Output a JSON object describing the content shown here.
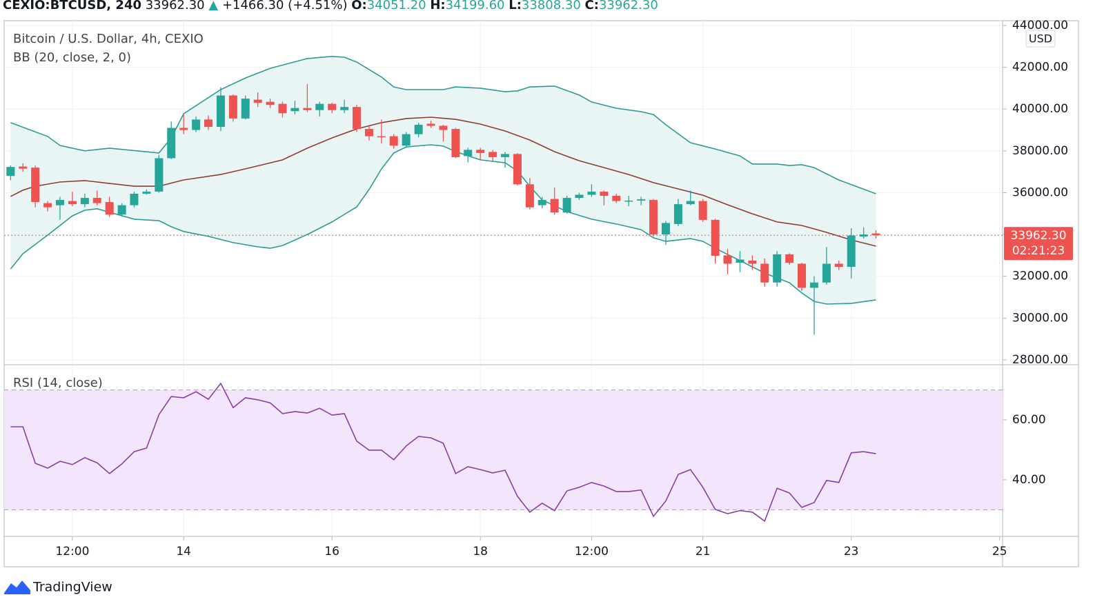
{
  "header": {
    "symbol": "CEXIO:BTCUSD, 240",
    "last": "33962.30",
    "arrow": "▲",
    "change": "+1466.30 (+4.51%)",
    "ohlc": [
      {
        "key": "O:",
        "value": "34051.20"
      },
      {
        "key": "H:",
        "value": "34199.60"
      },
      {
        "key": "L:",
        "value": "33808.30"
      },
      {
        "key": "C:",
        "value": "33962.30"
      }
    ]
  },
  "branding": "TradingView",
  "chart_data": [
    {
      "type": "candlestick",
      "title": "Bitcoin / U.S. Dollar, 4h, CEXIO",
      "currency": "USD",
      "up_color": "#26a69a",
      "down_color": "#ef5350",
      "x": [
        11.667,
        11.833,
        12,
        12.167,
        12.333,
        12.5,
        12.667,
        12.833,
        13,
        13.167,
        13.333,
        13.5,
        13.667,
        13.833,
        14,
        14.167,
        14.333,
        14.5,
        14.667,
        14.833,
        15,
        15.167,
        15.333,
        15.5,
        15.667,
        15.833,
        16,
        16.167,
        16.333,
        16.5,
        16.667,
        16.833,
        17,
        17.167,
        17.333,
        17.5,
        17.667,
        17.833,
        18,
        18.167,
        18.333,
        18.5,
        18.667,
        18.833,
        19,
        19.167,
        19.333,
        19.5,
        19.667,
        19.833,
        20,
        20.167,
        20.333,
        20.5,
        20.667,
        20.833,
        21,
        21.167,
        21.333,
        21.5,
        21.667,
        21.833,
        22,
        22.167,
        22.333,
        22.5,
        22.667,
        22.833,
        23,
        23.167,
        23.333
      ],
      "open": [
        36800,
        37250,
        37200,
        35500,
        35400,
        35600,
        35450,
        35750,
        35550,
        34950,
        35400,
        35950,
        36050,
        37650,
        39100,
        39000,
        39500,
        39150,
        40650,
        39550,
        40450,
        40350,
        40250,
        39900,
        40050,
        39950,
        40250,
        39950,
        40100,
        39050,
        38700,
        38700,
        38250,
        38800,
        39300,
        39200,
        39050,
        37750,
        38050,
        37950,
        37700,
        37850,
        36400,
        35400,
        35700,
        35050,
        35750,
        35900,
        36050,
        35850,
        35580,
        35620,
        35650,
        34000,
        34500,
        35450,
        35600,
        34700,
        33000,
        32650,
        32750,
        32600,
        31700,
        33050,
        32600,
        31450,
        31700,
        32600,
        32450,
        33900,
        34051.2
      ],
      "high": [
        37300,
        37400,
        37300,
        35600,
        35800,
        36050,
        35950,
        36100,
        35800,
        35500,
        36050,
        36150,
        37800,
        39400,
        39800,
        39650,
        39700,
        41050,
        40700,
        40650,
        40800,
        40500,
        40350,
        40400,
        41200,
        40350,
        40300,
        40450,
        40200,
        39200,
        39500,
        38800,
        38900,
        39350,
        39450,
        39250,
        39100,
        38150,
        38150,
        38050,
        37950,
        37900,
        36700,
        35800,
        36250,
        35850,
        36000,
        36400,
        36100,
        35950,
        35850,
        35800,
        35700,
        34650,
        35700,
        36100,
        35700,
        34750,
        33300,
        33200,
        33000,
        32850,
        33200,
        33100,
        32650,
        32000,
        33400,
        32750,
        34300,
        34350,
        34199.6
      ],
      "low": [
        36600,
        37000,
        35300,
        35100,
        34700,
        35350,
        35300,
        35400,
        34850,
        34850,
        35300,
        35900,
        36000,
        37600,
        38800,
        38900,
        39000,
        38950,
        39400,
        39500,
        40100,
        40050,
        39600,
        39750,
        39850,
        39650,
        39800,
        39800,
        38900,
        38500,
        38350,
        38100,
        38150,
        38650,
        39100,
        38450,
        37650,
        37450,
        37550,
        37500,
        37200,
        36350,
        35200,
        35250,
        34950,
        35000,
        35650,
        35800,
        35400,
        35500,
        35350,
        35400,
        33900,
        33500,
        34400,
        35400,
        34600,
        32600,
        32100,
        32200,
        32300,
        31500,
        31500,
        32550,
        31300,
        29200,
        31600,
        32300,
        31900,
        33800,
        33808.3
      ],
      "close": [
        37230,
        37150,
        35550,
        35300,
        35650,
        35450,
        35750,
        35500,
        34950,
        35400,
        35950,
        36050,
        37650,
        39100,
        39000,
        39500,
        39150,
        40650,
        39550,
        40500,
        40300,
        40200,
        39800,
        40050,
        39950,
        40250,
        39950,
        40100,
        39050,
        38700,
        38650,
        38250,
        38800,
        39250,
        39200,
        39000,
        37700,
        38050,
        37900,
        37700,
        37850,
        36400,
        35300,
        35650,
        35050,
        35750,
        35900,
        36050,
        35850,
        35600,
        35620,
        35680,
        34000,
        34550,
        35450,
        35600,
        34700,
        32980,
        32600,
        32800,
        32600,
        31700,
        33050,
        32650,
        31450,
        31700,
        32600,
        32450,
        33950,
        34000,
        33962.3
      ],
      "last_price_label": "33962.30",
      "countdown": "02:21:23",
      "last_color": "#ef5350",
      "overlay": {
        "name": "BB (20, close, 2, 0)",
        "fill": "#e9f5f4",
        "series": [
          {
            "color": "#2f9a94",
            "x": [
              11.667,
              12.167,
              12.333,
              12.667,
              13,
              13.667,
              13.833,
              14,
              14.5,
              14.833,
              15.167,
              15.667,
              16,
              16.167,
              16.333,
              16.667,
              16.833,
              17,
              17.5,
              17.667,
              18,
              18.333,
              18.5,
              18.667,
              19,
              19.333,
              19.5,
              19.833,
              20.167,
              20.333,
              20.5,
              20.833,
              21.167,
              21.5,
              21.667,
              22,
              22.167,
              22.333,
              22.5,
              22.833,
              23.333
            ],
            "values": [
              39350,
              38690,
              38260,
              38000,
              38130,
              37900,
              38620,
              39780,
              40930,
              41490,
              41950,
              42420,
              42520,
              42480,
              42250,
              41530,
              41060,
              40930,
              40930,
              41060,
              41000,
              40830,
              40870,
              41060,
              41100,
              40670,
              40340,
              40040,
              39880,
              39740,
              39250,
              38390,
              38090,
              37760,
              37370,
              37370,
              37300,
              37340,
              37200,
              36610,
              35950
            ]
          },
          {
            "color": "#8d3b30",
            "x": [
              11.667,
              11.833,
              12,
              12.333,
              12.667,
              13,
              13.333,
              13.667,
              14,
              14.5,
              14.833,
              15.333,
              15.667,
              16,
              16.333,
              16.667,
              17,
              17.333,
              17.667,
              18,
              18.333,
              18.667,
              19,
              19.333,
              19.667,
              20,
              20.333,
              20.667,
              21,
              21.333,
              21.667,
              22,
              22.333,
              22.667,
              23,
              23.333
            ],
            "values": [
              35820,
              36120,
              36310,
              36510,
              36580,
              36440,
              36310,
              36310,
              36610,
              36870,
              37140,
              37570,
              38130,
              38620,
              39050,
              39350,
              39550,
              39610,
              39510,
              39280,
              38950,
              38520,
              37960,
              37530,
              37200,
              36870,
              36480,
              36180,
              35880,
              35420,
              34990,
              34600,
              34430,
              34100,
              33740,
              33440
            ]
          },
          {
            "color": "#2f9a94",
            "x": [
              11.667,
              11.833,
              12.167,
              12.333,
              12.5,
              12.667,
              12.833,
              13,
              13.333,
              13.667,
              13.833,
              14,
              14.333,
              14.667,
              15,
              15.167,
              15.333,
              15.667,
              16,
              16.333,
              16.5,
              16.667,
              16.833,
              17,
              17.333,
              17.5,
              17.667,
              18,
              18.333,
              18.5,
              18.667,
              18.833,
              19.167,
              19.5,
              19.833,
              20.167,
              20.333,
              20.5,
              20.833,
              21,
              21.167,
              21.5,
              21.833,
              22.167,
              22.333,
              22.5,
              22.667,
              23,
              23.333
            ],
            "values": [
              32350,
              33080,
              33970,
              34430,
              34890,
              35160,
              35230,
              35060,
              34730,
              34660,
              34370,
              34140,
              33910,
              33610,
              33410,
              33340,
              33470,
              34000,
              34600,
              35320,
              36150,
              37140,
              37900,
              38190,
              38290,
              38230,
              37960,
              37570,
              37430,
              37040,
              36310,
              35650,
              35090,
              34730,
              34500,
              34230,
              33840,
              33670,
              33800,
              33670,
              33340,
              32750,
              32150,
              31690,
              31200,
              30800,
              30670,
              30700,
              30870
            ]
          }
        ]
      },
      "ylim": [
        27800,
        44230
      ],
      "yticks": [
        {
          "value": 28000,
          "label": "28000.00"
        },
        {
          "value": 30000,
          "label": "30000.00"
        },
        {
          "value": 32000,
          "label": "32000.00"
        },
        {
          "value": 34000,
          "label": "34000.00"
        },
        {
          "value": 36000,
          "label": "36000.00"
        },
        {
          "value": 38000,
          "label": "38000.00"
        },
        {
          "value": 40000,
          "label": "40000.00"
        },
        {
          "value": 42000,
          "label": "42000.00"
        },
        {
          "value": 44000,
          "label": "44000.00"
        }
      ],
      "xlim": [
        11.58,
        25.04
      ],
      "xticks": [
        {
          "value": 12.5,
          "label": "12:00"
        },
        {
          "value": 14,
          "label": "14"
        },
        {
          "value": 16,
          "label": "16"
        },
        {
          "value": 18,
          "label": "18"
        },
        {
          "value": 19.5,
          "label": "12:00"
        },
        {
          "value": 21,
          "label": "21"
        },
        {
          "value": 23,
          "label": "23"
        },
        {
          "value": 25,
          "label": "25"
        }
      ],
      "grid": true
    },
    {
      "type": "line",
      "title": "RSI (14, close)",
      "color": "#8a3ca8",
      "band": [
        30,
        70
      ],
      "band_fill": "#f3e6fc",
      "band_color": "#b48ec9",
      "x": [
        11.667,
        11.833,
        12,
        12.167,
        12.333,
        12.5,
        12.667,
        12.833,
        13,
        13.167,
        13.333,
        13.5,
        13.667,
        13.833,
        14,
        14.167,
        14.333,
        14.5,
        14.667,
        14.833,
        15,
        15.167,
        15.333,
        15.5,
        15.667,
        15.833,
        16,
        16.167,
        16.333,
        16.5,
        16.667,
        16.833,
        17,
        17.167,
        17.333,
        17.5,
        17.667,
        17.833,
        18,
        18.167,
        18.333,
        18.5,
        18.667,
        18.833,
        19,
        19.167,
        19.333,
        19.5,
        19.667,
        19.833,
        20,
        20.167,
        20.333,
        20.5,
        20.667,
        20.833,
        21,
        21.167,
        21.333,
        21.5,
        21.667,
        21.833,
        22,
        22.167,
        22.333,
        22.5,
        22.667,
        22.833,
        23,
        23.167,
        23.333
      ],
      "values": [
        57.7,
        57.7,
        45.5,
        43.9,
        46.2,
        45.1,
        47.4,
        45.7,
        42.1,
        45.3,
        49.4,
        50.6,
        61.8,
        67.8,
        67.4,
        69.4,
        66.9,
        72.2,
        64.1,
        67.4,
        66.7,
        65.7,
        62.1,
        62.8,
        62.3,
        63.9,
        61.6,
        62.1,
        52.9,
        49.9,
        49.9,
        46.7,
        51.3,
        54.5,
        54.0,
        52.2,
        42.1,
        44.4,
        43.4,
        42.3,
        43.2,
        34.5,
        29.2,
        32.2,
        29.7,
        36.3,
        37.5,
        39.1,
        37.9,
        36.1,
        36.1,
        36.6,
        27.8,
        32.9,
        41.8,
        43.4,
        37.5,
        30.1,
        28.7,
        29.7,
        29.2,
        26.2,
        37.2,
        35.6,
        30.8,
        32.4,
        39.8,
        39.1,
        49.0,
        49.4,
        48.7
      ],
      "ylim": [
        21.1,
        78.2
      ],
      "yticks": [
        {
          "value": 40,
          "label": "40.00"
        },
        {
          "value": 60,
          "label": "60.00"
        }
      ],
      "xlim": [
        11.58,
        25.04
      ],
      "grid": true
    }
  ]
}
